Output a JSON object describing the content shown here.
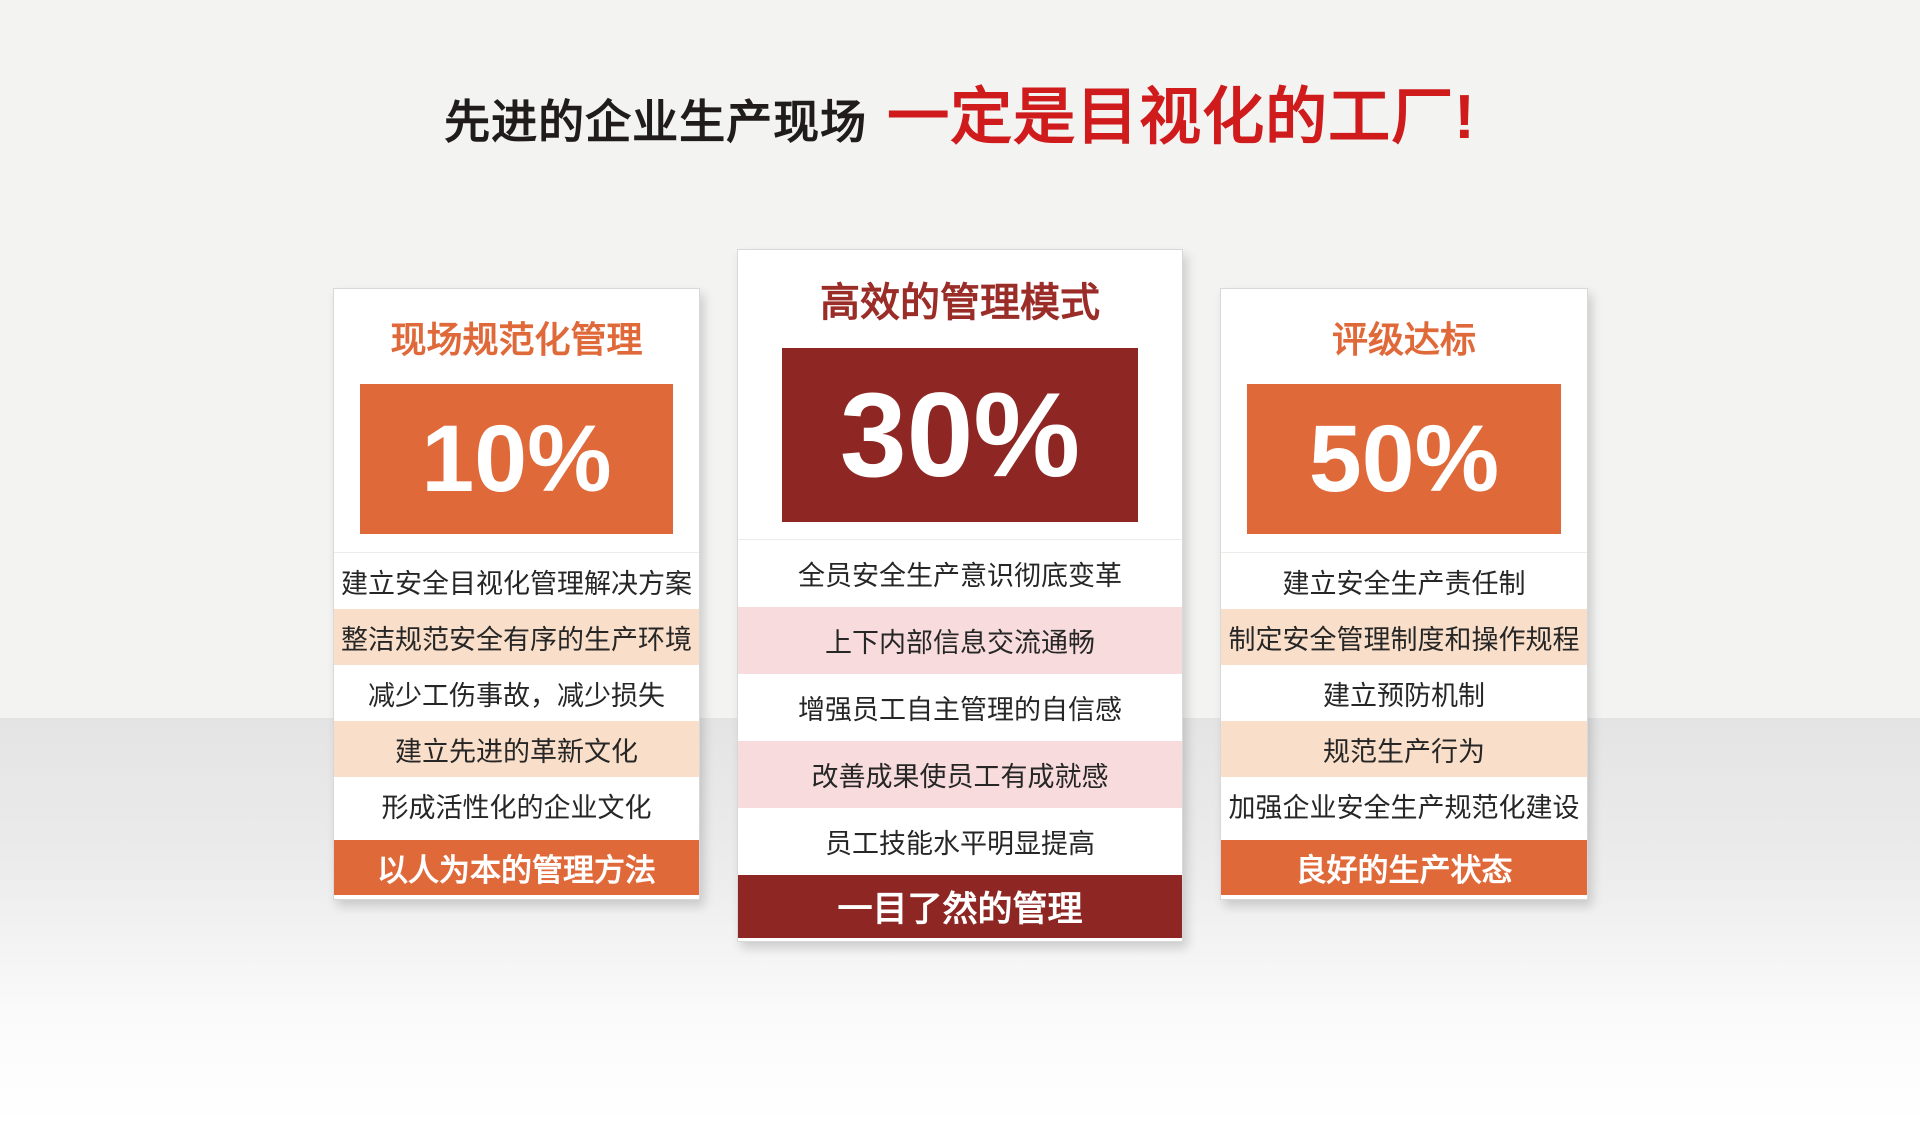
{
  "title": {
    "prefix": "先进的企业生产现场",
    "emphasis": "一定是目视化的工厂!"
  },
  "cards": [
    {
      "heading": "现场规范化管理",
      "percent": "10%",
      "rows": [
        {
          "text": "建立安全目视化管理解决方案"
        },
        {
          "text": "整洁规范安全有序的生产环境"
        },
        {
          "text": "减少工伤事故，减少损失"
        },
        {
          "text": "建立先进的革新文化"
        },
        {
          "text": "形成活性化的企业文化"
        }
      ],
      "footer": "以人为本的管理方法"
    },
    {
      "heading": "高效的管理模式",
      "percent": "30%",
      "rows": [
        {
          "text": "全员安全生产意识彻底变革"
        },
        {
          "text": "上下内部信息交流通畅"
        },
        {
          "text": "增强员工自主管理的自信感"
        },
        {
          "text": "改善成果使员工有成就感"
        },
        {
          "text": "员工技能水平明显提高"
        }
      ],
      "footer": "一目了然的管理"
    },
    {
      "heading": "评级达标",
      "percent": "50%",
      "rows": [
        {
          "text": "建立安全生产责任制"
        },
        {
          "text": "制定安全管理制度和操作规程"
        },
        {
          "text": "建立预防机制"
        },
        {
          "text": "规范生产行为"
        },
        {
          "text": "加强企业安全生产规范化建设"
        }
      ],
      "footer": "良好的生产状态"
    }
  ],
  "colors": {
    "accent_orange": "#e0693a",
    "accent_dark_red": "#8e2723",
    "title_red": "#d01b1c",
    "highlight_peach": "#f9dfc9",
    "highlight_pink": "#f8dcdd"
  }
}
